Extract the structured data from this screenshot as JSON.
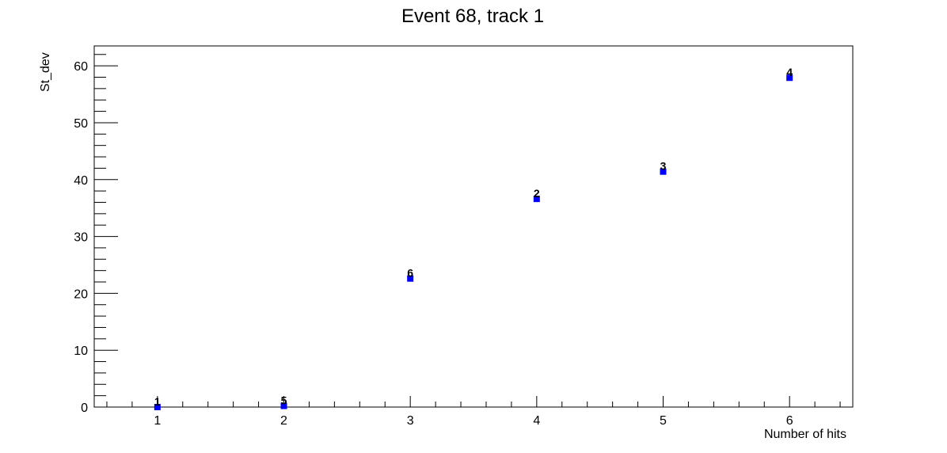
{
  "chart_data": {
    "type": "scatter",
    "title": "Event 68, track 1",
    "xlabel": "Number of hits",
    "ylabel": "St_dev",
    "xlim": [
      0.5,
      6.5
    ],
    "ylim": [
      0,
      63.5
    ],
    "xticks": [
      1,
      2,
      3,
      4,
      5,
      6
    ],
    "yticks": [
      0,
      10,
      20,
      30,
      40,
      50,
      60
    ],
    "grid": false,
    "marker_color": "#0000ff",
    "points": [
      {
        "x": 1,
        "y": 0,
        "label": "1"
      },
      {
        "x": 2,
        "y": 0.2,
        "label": "5"
      },
      {
        "x": 3,
        "y": 22.6,
        "label": "6"
      },
      {
        "x": 4,
        "y": 36.6,
        "label": "2"
      },
      {
        "x": 5,
        "y": 41.4,
        "label": "3"
      },
      {
        "x": 6,
        "y": 57.9,
        "label": "4"
      }
    ]
  }
}
